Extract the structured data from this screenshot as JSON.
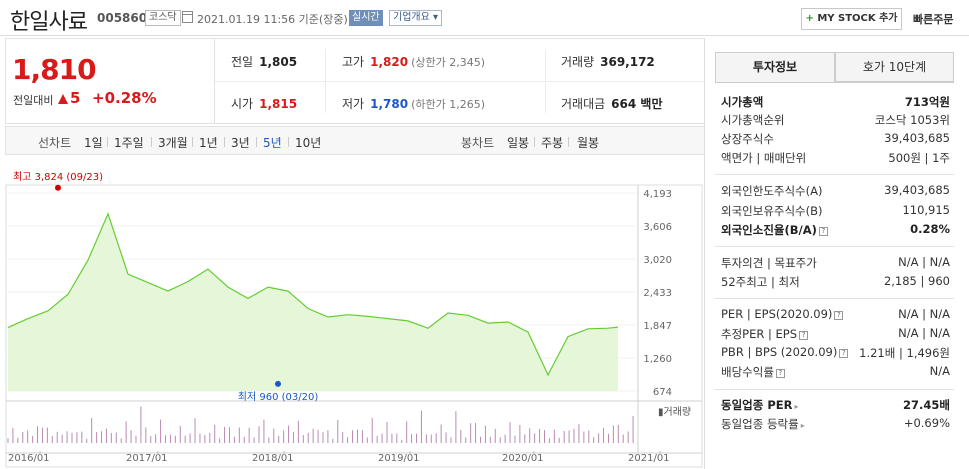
{
  "header": {
    "company_name": "한일사료",
    "code": "005860",
    "market": "코스닥",
    "basis_datetime": "2021.01.19 11:56 기준(장중)",
    "realtime_label": "실시간",
    "overview_label": "기업개요 ▾",
    "mystock_label": "MY STOCK 추가",
    "mystock_plus": "+",
    "quick_order_label": "빠른주문"
  },
  "summary": {
    "current_price": "1,810",
    "compare_label": "전일대비",
    "change": "5",
    "change_pct": "+0.28%",
    "prev_close_label": "전일",
    "prev_close": "1,805",
    "high_label": "고가",
    "high": "1,820",
    "upper_limit": "(상한가 2,345)",
    "volume_label": "거래량",
    "volume": "369,172",
    "open_label": "시가",
    "open": "1,815",
    "low_label": "저가",
    "low": "1,780",
    "lower_limit": "(하한가 1,265)",
    "amount_label": "거래대금",
    "amount": "664 백만"
  },
  "chart_tabs": {
    "line_label": "선차트",
    "periods": [
      "1일",
      "1주일",
      "3개월",
      "1년",
      "3년",
      "5년",
      "10년"
    ],
    "active_period": "5년",
    "candle_label": "봉차트",
    "candles": [
      "일봉",
      "주봉",
      "월봉"
    ]
  },
  "chart_data": {
    "type": "area",
    "yticks": [
      "4,193",
      "3,606",
      "3,020",
      "2,433",
      "1,847",
      "1,260",
      "674"
    ],
    "ylim": [
      674,
      4193
    ],
    "xticks": [
      "2016/01",
      "2017/01",
      "2018/01",
      "2019/01",
      "2020/01",
      "2021/01"
    ],
    "x": [
      0,
      2,
      4,
      6,
      8,
      10,
      12,
      14,
      16,
      18,
      20,
      22,
      24,
      26,
      28,
      30,
      32,
      34,
      36,
      38,
      40,
      42,
      44,
      46,
      48,
      50,
      52,
      54,
      56,
      58,
      60,
      61
    ],
    "y": [
      1800,
      1960,
      2100,
      2390,
      3000,
      3824,
      2750,
      2600,
      2450,
      2620,
      2840,
      2520,
      2320,
      2520,
      2450,
      2140,
      1990,
      2030,
      2000,
      1960,
      1920,
      1790,
      2060,
      2020,
      1880,
      1900,
      1720,
      960,
      1640,
      1780,
      1790,
      1810
    ],
    "max_label": "최고 3,824 (09/23)",
    "min_label": "최저 960 (03/20)",
    "max_point": {
      "x": 5,
      "y": 3824
    },
    "min_point": {
      "x": 27,
      "y": 960
    },
    "volume_label": "거래량",
    "volume": [
      30,
      45,
      20,
      60,
      35,
      25,
      80,
      40,
      50,
      30,
      70,
      25,
      45,
      55,
      30,
      40,
      20,
      65,
      35,
      50,
      90,
      30,
      40,
      25,
      60,
      45,
      35,
      95,
      50,
      30,
      55,
      70
    ],
    "line_color": "#66cc33",
    "fill_color": "#e6f7d9",
    "max_color": "#cc0000",
    "min_color": "#1a58c7"
  },
  "panel": {
    "tab_active": "투자정보",
    "tab_inactive": "호가 10단계",
    "rows": {
      "market_cap": {
        "label": "시가총액",
        "value": "713억원"
      },
      "cap_rank": {
        "label": "시가총액순위",
        "value": "코스닥 1053위"
      },
      "shares": {
        "label": "상장주식수",
        "value": "39,403,685"
      },
      "par": {
        "label": "액면가 | 매매단위",
        "value": "500원 | 1주"
      },
      "foreign_limit": {
        "label": "외국인한도주식수(A)",
        "value": "39,403,685"
      },
      "foreign_hold": {
        "label": "외국인보유주식수(B)",
        "value": "110,915"
      },
      "foreign_ratio": {
        "label": "외국인소진율(B/A)",
        "value": "0.28%"
      },
      "opinion": {
        "label": "투자의견 | 목표주가",
        "value": "N/A | N/A"
      },
      "range52": {
        "label": "52주최고 | 최저",
        "value": "2,185 | 960"
      },
      "per": {
        "label": "PER | EPS(2020.09)",
        "value": "N/A | N/A"
      },
      "est_per": {
        "label": "추정PER | EPS",
        "value": "N/A | N/A"
      },
      "pbr": {
        "label": "PBR | BPS (2020.09)",
        "value": "1.21배 | 1,496원"
      },
      "dividend": {
        "label": "배당수익률",
        "value": "N/A"
      },
      "ind_per": {
        "label": "동일업종 PER",
        "value": "27.45배"
      },
      "ind_rate": {
        "label": "동일업종 등락률",
        "value": "+0.69%"
      }
    }
  }
}
